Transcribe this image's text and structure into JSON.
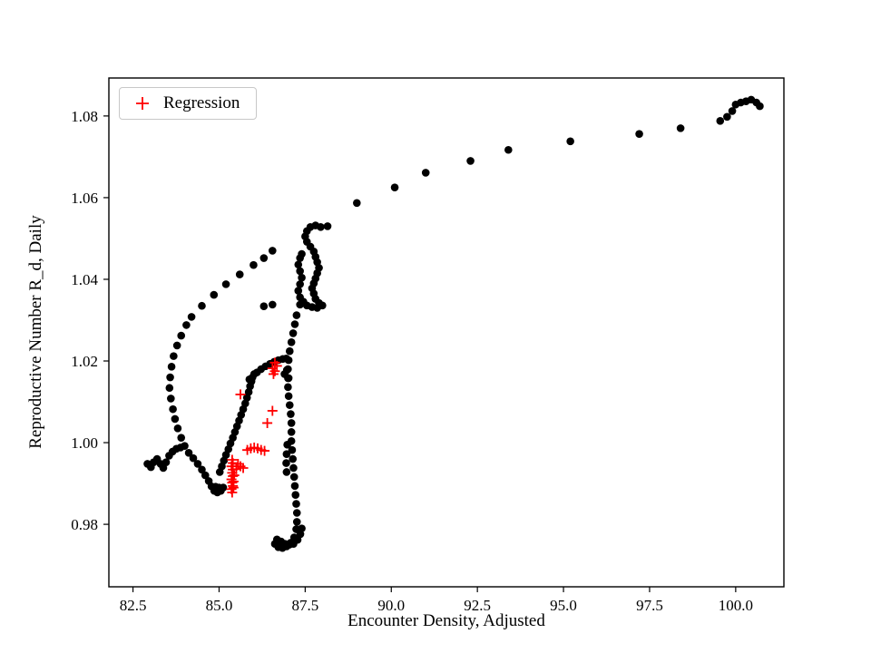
{
  "figure": {
    "xlabel": "Encounter Density, Adjusted",
    "ylabel": "Reproductive Number R_d, Daily",
    "legend": {
      "label": "Regression",
      "marker": "plus",
      "marker_color": "#ff0000"
    },
    "background": "#ffffff",
    "axis_color": "#000000"
  },
  "chart_data": {
    "type": "scatter",
    "title": "",
    "xlabel": "Encounter Density, Adjusted",
    "ylabel": "Reproductive Number R_d, Daily",
    "xlim": [
      81.8,
      101.4
    ],
    "ylim": [
      0.9647,
      1.0893
    ],
    "x_ticks": [
      82.5,
      85.0,
      87.5,
      90.0,
      92.5,
      95.0,
      97.5,
      100.0
    ],
    "y_ticks": [
      0.98,
      1.0,
      1.02,
      1.04,
      1.06,
      1.08
    ],
    "grid": false,
    "legend_position": "upper left",
    "series": [
      {
        "name": "trajectory",
        "marker": "circle",
        "color": "#000000",
        "points": [
          [
            100.45,
            1.084
          ],
          [
            100.6,
            1.0833
          ],
          [
            100.7,
            1.0824
          ],
          [
            100.3,
            1.0836
          ],
          [
            100.15,
            1.0833
          ],
          [
            100.0,
            1.0828
          ],
          [
            99.9,
            1.0812
          ],
          [
            99.75,
            1.0798
          ],
          [
            99.55,
            1.0788
          ],
          [
            98.4,
            1.077
          ],
          [
            97.2,
            1.0756
          ],
          [
            95.2,
            1.0738
          ],
          [
            93.4,
            1.0717
          ],
          [
            92.3,
            1.069
          ],
          [
            91.0,
            1.0661
          ],
          [
            90.1,
            1.0625
          ],
          [
            89.0,
            1.0587
          ],
          [
            88.15,
            1.053
          ],
          [
            87.95,
            1.0528
          ],
          [
            87.8,
            1.0532
          ],
          [
            87.65,
            1.0528
          ],
          [
            87.55,
            1.0518
          ],
          [
            87.5,
            1.0505
          ],
          [
            87.55,
            1.0492
          ],
          [
            87.65,
            1.048
          ],
          [
            87.75,
            1.0468
          ],
          [
            87.8,
            1.0455
          ],
          [
            87.85,
            1.0442
          ],
          [
            87.9,
            1.0428
          ],
          [
            87.85,
            1.0415
          ],
          [
            87.8,
            1.0402
          ],
          [
            87.75,
            1.039
          ],
          [
            87.7,
            1.0378
          ],
          [
            87.75,
            1.0365
          ],
          [
            87.8,
            1.0352
          ],
          [
            87.9,
            1.0342
          ],
          [
            88.0,
            1.0336
          ],
          [
            87.85,
            1.033
          ],
          [
            87.7,
            1.0332
          ],
          [
            87.55,
            1.0336
          ],
          [
            87.45,
            1.0345
          ],
          [
            87.35,
            1.0338
          ],
          [
            87.35,
            1.0356
          ],
          [
            87.3,
            1.0372
          ],
          [
            87.35,
            1.0388
          ],
          [
            87.4,
            1.0404
          ],
          [
            87.35,
            1.042
          ],
          [
            87.3,
            1.0436
          ],
          [
            87.35,
            1.0452
          ],
          [
            87.4,
            1.0462
          ],
          [
            86.55,
            1.047
          ],
          [
            86.3,
            1.0452
          ],
          [
            86.0,
            1.0435
          ],
          [
            85.6,
            1.0412
          ],
          [
            85.2,
            1.0388
          ],
          [
            84.85,
            1.0362
          ],
          [
            84.5,
            1.0335
          ],
          [
            84.2,
            1.0308
          ],
          [
            84.05,
            1.0288
          ],
          [
            86.55,
            1.0338
          ],
          [
            86.3,
            1.0334
          ],
          [
            83.9,
            1.0262
          ],
          [
            83.78,
            1.0238
          ],
          [
            83.68,
            1.0212
          ],
          [
            83.62,
            1.0186
          ],
          [
            83.58,
            1.016
          ],
          [
            83.56,
            1.0134
          ],
          [
            83.6,
            1.0108
          ],
          [
            83.66,
            1.0082
          ],
          [
            83.72,
            1.0058
          ],
          [
            83.8,
            1.0035
          ],
          [
            83.9,
            1.0012
          ],
          [
            84.0,
            0.9992
          ],
          [
            84.12,
            0.9975
          ],
          [
            82.92,
            0.9948
          ],
          [
            83.02,
            0.994
          ],
          [
            83.1,
            0.9952
          ],
          [
            83.2,
            0.996
          ],
          [
            83.3,
            0.9948
          ],
          [
            83.38,
            0.9938
          ],
          [
            83.46,
            0.9952
          ],
          [
            83.55,
            0.9968
          ],
          [
            83.65,
            0.9978
          ],
          [
            83.76,
            0.9985
          ],
          [
            83.88,
            0.9988
          ],
          [
            84.25,
            0.9962
          ],
          [
            84.38,
            0.9948
          ],
          [
            84.5,
            0.9934
          ],
          [
            84.6,
            0.992
          ],
          [
            84.7,
            0.9906
          ],
          [
            84.78,
            0.9893
          ],
          [
            84.86,
            0.9882
          ],
          [
            84.95,
            0.9878
          ],
          [
            85.05,
            0.9882
          ],
          [
            85.12,
            0.989
          ],
          [
            85.0,
            0.989
          ],
          [
            84.9,
            0.9892
          ],
          [
            85.02,
            0.9928
          ],
          [
            85.08,
            0.9942
          ],
          [
            85.14,
            0.9956
          ],
          [
            85.2,
            0.997
          ],
          [
            85.27,
            0.9984
          ],
          [
            85.33,
            0.9998
          ],
          [
            85.4,
            1.0012
          ],
          [
            85.46,
            1.0026
          ],
          [
            85.52,
            1.004
          ],
          [
            85.58,
            1.0054
          ],
          [
            85.64,
            1.0068
          ],
          [
            85.7,
            1.0082
          ],
          [
            85.76,
            1.0096
          ],
          [
            85.81,
            1.011
          ],
          [
            85.86,
            1.0124
          ],
          [
            85.9,
            1.0138
          ],
          [
            85.94,
            1.015
          ],
          [
            85.97,
            1.016
          ],
          [
            86.02,
            1.0168
          ],
          [
            85.88,
            1.0155
          ],
          [
            86.1,
            1.0172
          ],
          [
            86.22,
            1.018
          ],
          [
            86.35,
            1.0187
          ],
          [
            86.48,
            1.0193
          ],
          [
            86.6,
            1.0198
          ],
          [
            86.72,
            1.0202
          ],
          [
            86.85,
            1.0205
          ],
          [
            86.95,
            1.0206
          ],
          [
            86.9,
            1.0168
          ],
          [
            86.97,
            1.0178
          ],
          [
            87.02,
            1.0158
          ],
          [
            87.25,
            1.0312
          ],
          [
            87.2,
            1.029
          ],
          [
            87.15,
            1.0268
          ],
          [
            87.1,
            1.0246
          ],
          [
            87.05,
            1.0224
          ],
          [
            87.02,
            1.0202
          ],
          [
            87.0,
            1.018
          ],
          [
            87.0,
            1.0158
          ],
          [
            87.0,
            1.0136
          ],
          [
            87.02,
            1.0114
          ],
          [
            87.05,
            1.0092
          ],
          [
            87.08,
            1.007
          ],
          [
            87.1,
            1.0048
          ],
          [
            87.1,
            1.0026
          ],
          [
            87.1,
            1.0004
          ],
          [
            87.12,
            0.9982
          ],
          [
            87.14,
            0.996
          ],
          [
            87.16,
            0.9938
          ],
          [
            87.18,
            0.9916
          ],
          [
            87.2,
            0.9894
          ],
          [
            87.22,
            0.9872
          ],
          [
            87.24,
            0.985
          ],
          [
            87.26,
            0.9828
          ],
          [
            87.26,
            0.9806
          ],
          [
            87.24,
            0.9788
          ],
          [
            86.98,
            0.9995
          ],
          [
            86.96,
            0.9972
          ],
          [
            86.95,
            0.995
          ],
          [
            86.96,
            0.9928
          ],
          [
            87.18,
            0.9768
          ],
          [
            87.08,
            0.9755
          ],
          [
            86.96,
            0.9746
          ],
          [
            86.84,
            0.9742
          ],
          [
            86.72,
            0.9744
          ],
          [
            86.62,
            0.9752
          ],
          [
            86.68,
            0.9763
          ],
          [
            86.8,
            0.9758
          ],
          [
            86.92,
            0.9752
          ],
          [
            87.04,
            0.975
          ],
          [
            87.16,
            0.9752
          ],
          [
            87.28,
            0.9762
          ],
          [
            87.36,
            0.9776
          ],
          [
            87.4,
            0.979
          ]
        ]
      },
      {
        "name": "Regression",
        "marker": "plus",
        "color": "#ff0000",
        "points": [
          [
            86.62,
            1.0196
          ],
          [
            86.68,
            1.0188
          ],
          [
            86.55,
            1.0182
          ],
          [
            86.62,
            1.0175
          ],
          [
            86.58,
            1.0168
          ],
          [
            85.62,
            1.0118
          ],
          [
            86.55,
            1.0078
          ],
          [
            86.4,
            1.0048
          ],
          [
            85.82,
            0.9982
          ],
          [
            85.92,
            0.9986
          ],
          [
            86.02,
            0.9988
          ],
          [
            86.12,
            0.9986
          ],
          [
            86.22,
            0.9982
          ],
          [
            86.32,
            0.998
          ],
          [
            85.5,
            0.9935
          ],
          [
            85.55,
            0.9948
          ],
          [
            85.62,
            0.9942
          ],
          [
            85.7,
            0.9938
          ],
          [
            85.38,
            0.9958
          ],
          [
            85.4,
            0.995
          ],
          [
            85.36,
            0.9942
          ],
          [
            85.4,
            0.9934
          ],
          [
            85.38,
            0.9926
          ],
          [
            85.4,
            0.9918
          ],
          [
            85.36,
            0.991
          ],
          [
            85.38,
            0.9902
          ],
          [
            85.4,
            0.9894
          ],
          [
            85.36,
            0.9886
          ],
          [
            85.38,
            0.9878
          ],
          [
            85.42,
            0.9905
          ],
          [
            85.42,
            0.989
          ],
          [
            85.44,
            0.992
          ]
        ]
      }
    ]
  }
}
